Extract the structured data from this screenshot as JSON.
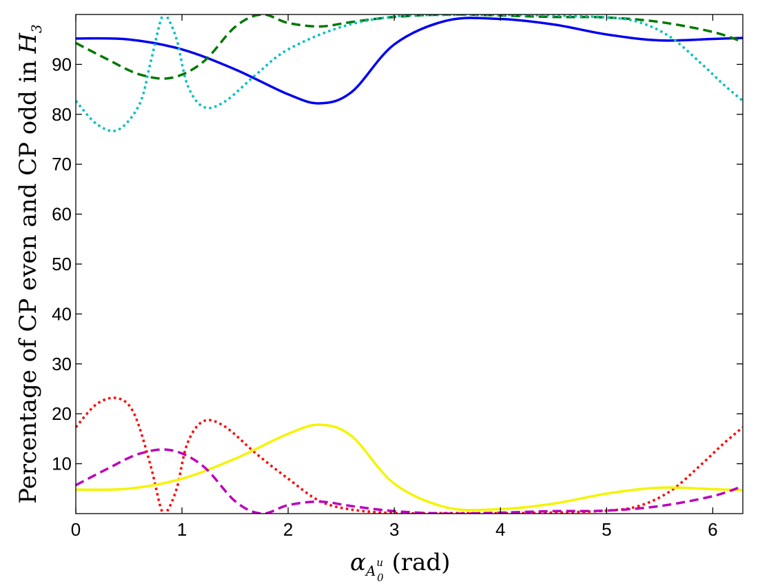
{
  "chart_data": {
    "type": "line",
    "xlabel": "(rad)",
    "xlabel_symbol": "α",
    "xlabel_sub": "A",
    "xlabel_subsub_sup": "u",
    "xlabel_subsub_sub": "0",
    "ylabel": "Percentage of CP even and CP odd in",
    "ylabel_symbol": "H",
    "ylabel_symbol_sub": "3",
    "xlim": [
      0,
      6.2832
    ],
    "ylim": [
      0,
      100
    ],
    "xticks": [
      0,
      1,
      2,
      3,
      4,
      5,
      6
    ],
    "yticks": [
      10,
      20,
      30,
      40,
      50,
      60,
      70,
      80,
      90
    ],
    "grid": false,
    "series": [
      {
        "color": "#0000ee",
        "style": "solid",
        "x": [
          0,
          0.5,
          1.0,
          1.5,
          2.0,
          2.3,
          2.6,
          3.0,
          3.5,
          4.0,
          4.5,
          5.0,
          5.5,
          6.0,
          6.2832
        ],
        "y": [
          95.2,
          95.0,
          93.0,
          89.0,
          84.0,
          82.2,
          84.5,
          94.0,
          98.8,
          99.1,
          98.0,
          96.0,
          94.8,
          95.1,
          95.3
        ]
      },
      {
        "color": "#007700",
        "style": "dashed",
        "x": [
          0,
          0.3,
          0.6,
          0.9,
          1.2,
          1.5,
          1.75,
          2.0,
          2.3,
          2.6,
          3.0,
          3.5,
          4.0,
          4.5,
          5.0,
          5.5,
          6.0,
          6.2832
        ],
        "y": [
          94.3,
          91.0,
          88.0,
          87.3,
          90.5,
          97.5,
          100.0,
          98.3,
          97.6,
          98.5,
          99.5,
          100.0,
          99.8,
          99.5,
          99.4,
          98.5,
          96.5,
          94.5
        ]
      },
      {
        "color": "#00c0c0",
        "style": "dotted",
        "x": [
          0,
          0.2,
          0.4,
          0.6,
          0.7,
          0.8,
          0.85,
          0.95,
          1.05,
          1.2,
          1.4,
          1.7,
          2.0,
          2.5,
          3.0,
          3.5,
          4.0,
          4.5,
          5.0,
          5.3,
          5.6,
          5.9,
          6.1,
          6.2832
        ],
        "y": [
          82.7,
          78.0,
          76.9,
          82.0,
          90.0,
          98.8,
          99.8,
          95.0,
          86.0,
          81.5,
          82.5,
          88.0,
          93.0,
          97.5,
          99.6,
          99.9,
          99.9,
          99.8,
          99.4,
          98.5,
          95.5,
          90.0,
          86.0,
          82.7
        ]
      },
      {
        "color": "#ff0000",
        "style": "dotted",
        "x": [
          0,
          0.2,
          0.4,
          0.55,
          0.7,
          0.8,
          0.85,
          0.95,
          1.05,
          1.2,
          1.4,
          1.7,
          2.0,
          2.3,
          2.6,
          3.0,
          3.5,
          4.0,
          4.5,
          5.0,
          5.3,
          5.6,
          5.9,
          6.1,
          6.2832
        ],
        "y": [
          17.3,
          22.0,
          23.1,
          20.0,
          10.0,
          1.2,
          0.2,
          5.0,
          14.0,
          18.5,
          17.5,
          12.0,
          7.0,
          2.5,
          0.8,
          0.1,
          0.1,
          0.1,
          0.2,
          0.6,
          1.5,
          4.5,
          10.0,
          14.0,
          17.3
        ]
      },
      {
        "color": "#f4f400",
        "style": "solid",
        "x": [
          0,
          0.5,
          1.0,
          1.5,
          2.0,
          2.3,
          2.6,
          3.0,
          3.5,
          4.0,
          4.5,
          5.0,
          5.5,
          6.0,
          6.2832
        ],
        "y": [
          4.8,
          5.0,
          7.0,
          11.0,
          16.0,
          17.8,
          15.5,
          6.0,
          1.2,
          0.9,
          2.0,
          4.0,
          5.2,
          4.9,
          4.7
        ]
      },
      {
        "color": "#bb00bb",
        "style": "dashed",
        "x": [
          0,
          0.3,
          0.6,
          0.9,
          1.2,
          1.5,
          1.75,
          2.0,
          2.3,
          2.6,
          3.0,
          3.5,
          4.0,
          4.5,
          5.0,
          5.5,
          6.0,
          6.2832
        ],
        "y": [
          5.7,
          9.0,
          12.0,
          12.7,
          9.5,
          2.5,
          0.0,
          1.7,
          2.4,
          1.5,
          0.5,
          0.0,
          0.2,
          0.5,
          0.6,
          1.5,
          3.5,
          5.5
        ]
      }
    ]
  }
}
